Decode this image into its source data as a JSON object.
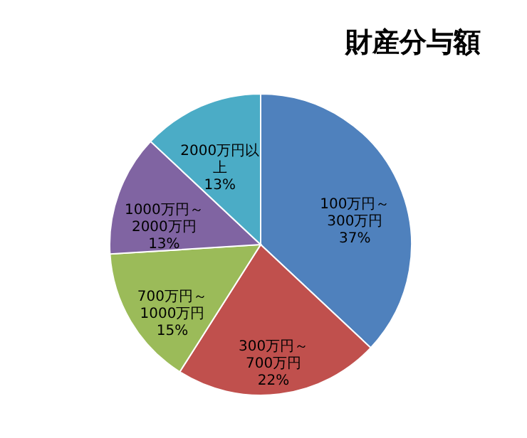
{
  "chart_data": {
    "type": "pie",
    "title": "財産分与額",
    "categories": [
      "100万円～300万円",
      "300万円～700万円",
      "700万円～1000万円",
      "1000万円～2000万円",
      "2000万円以上"
    ],
    "values": [
      37,
      22,
      15,
      13,
      13
    ],
    "value_labels": [
      "37%",
      "22%",
      "15%",
      "13%",
      "13%"
    ],
    "colors": [
      "#4f81bd",
      "#c0504d",
      "#9bbb59",
      "#8064a2",
      "#4bacc6"
    ]
  }
}
